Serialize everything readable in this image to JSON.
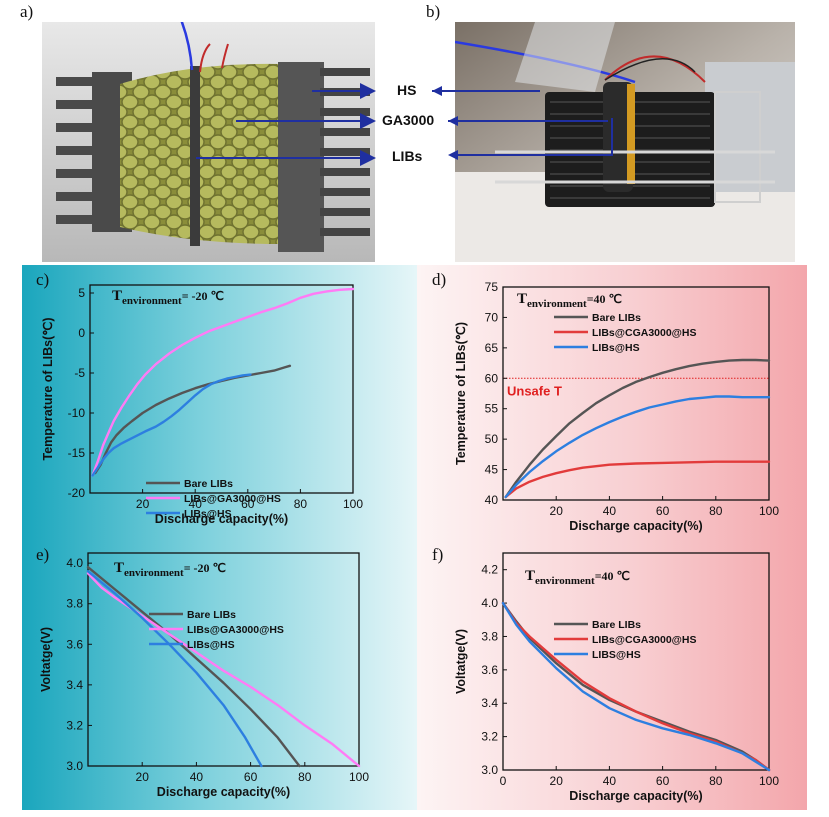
{
  "panels": {
    "a": "a)",
    "b": "b)",
    "c": "c)",
    "d": "d)",
    "e": "e)",
    "f": "f)"
  },
  "diagram": {
    "label_hs": "HS",
    "label_ga": "GA3000",
    "label_libs": "LIBs",
    "photo_description": "Photograph of battery test rig with heat sink fins, foam, clamps and wires"
  },
  "colors": {
    "bare": "#555555",
    "pink": "#ff7bf5",
    "blue": "#2d7fe0",
    "red": "#e23b3b",
    "arrow": "#1f2fa0",
    "teal": "#1aa6bd",
    "pinkbg": "#f3a6ab",
    "unsafe": "#e02020"
  },
  "chart_data": [
    {
      "id": "c",
      "type": "line",
      "title": "T",
      "title_sub": "environment",
      "title_rest": "= -20 ℃",
      "xlabel": "Discharge capacity(%)",
      "ylabel": "Temperature of LIBs(℃)",
      "xlim": [
        0,
        100
      ],
      "ylim": [
        -20,
        6
      ],
      "xticks": [
        20,
        40,
        60,
        80,
        100
      ],
      "yticks": [
        5,
        0,
        -5,
        -10,
        -15,
        -20
      ],
      "series": [
        {
          "name": "Bare LIBs",
          "color": "#555555",
          "x": [
            2,
            4,
            6,
            8,
            10,
            13,
            16,
            20,
            25,
            30,
            35,
            40,
            45,
            50,
            55,
            60,
            65,
            70,
            74,
            76
          ],
          "y": [
            -17.5,
            -16.5,
            -15.0,
            -13.7,
            -12.8,
            -11.8,
            -11.0,
            -10.0,
            -9.0,
            -8.2,
            -7.5,
            -6.9,
            -6.4,
            -6.0,
            -5.6,
            -5.3,
            -5.0,
            -4.7,
            -4.3,
            -4.1
          ]
        },
        {
          "name": "LIBs@GA3000@HS",
          "color": "#ff7bf5",
          "x": [
            1,
            3,
            5,
            7,
            9,
            12,
            15,
            18,
            21,
            25,
            30,
            35,
            40,
            45,
            50,
            55,
            60,
            65,
            70,
            75,
            80,
            85,
            90,
            95,
            100
          ],
          "y": [
            -17.8,
            -16.0,
            -14.0,
            -12.5,
            -11.0,
            -9.3,
            -7.8,
            -6.4,
            -5.2,
            -3.9,
            -2.6,
            -1.5,
            -0.6,
            0.2,
            0.8,
            1.4,
            2.0,
            2.6,
            3.1,
            3.7,
            4.4,
            4.9,
            5.2,
            5.4,
            5.5
          ]
        },
        {
          "name": "LIBs@HS",
          "color": "#2d7fe0",
          "x": [
            1,
            3,
            5,
            7,
            9,
            12,
            15,
            18,
            21,
            25,
            28,
            31,
            34,
            37,
            40,
            43,
            46,
            49,
            52,
            55,
            58,
            61
          ],
          "y": [
            -17.8,
            -16.8,
            -15.8,
            -15.0,
            -14.4,
            -13.8,
            -13.3,
            -12.8,
            -12.3,
            -11.7,
            -11.1,
            -10.4,
            -9.6,
            -8.7,
            -7.8,
            -7.0,
            -6.4,
            -6.0,
            -5.7,
            -5.5,
            -5.3,
            -5.2
          ]
        }
      ]
    },
    {
      "id": "d",
      "type": "line",
      "title": "T",
      "title_sub": "environment",
      "title_rest": "=40 ℃",
      "xlabel": "Discharge capacity(%)",
      "ylabel": "Temperature of LIBs(℃)",
      "xlim": [
        0,
        100
      ],
      "ylim": [
        40,
        75
      ],
      "xticks": [
        20,
        40,
        60,
        80,
        100
      ],
      "yticks": [
        40,
        45,
        50,
        55,
        60,
        65,
        70,
        75
      ],
      "annotation": {
        "text": "Unsafe T",
        "y": 60
      },
      "series": [
        {
          "name": "Bare LIBs",
          "color": "#555555",
          "x": [
            1,
            5,
            10,
            15,
            20,
            25,
            30,
            35,
            40,
            45,
            50,
            55,
            60,
            65,
            70,
            75,
            80,
            85,
            90,
            95,
            100
          ],
          "y": [
            40.5,
            43.0,
            45.8,
            48.3,
            50.5,
            52.6,
            54.3,
            55.9,
            57.2,
            58.4,
            59.4,
            60.2,
            60.9,
            61.5,
            62.0,
            62.4,
            62.7,
            62.9,
            63.0,
            63.0,
            62.9
          ]
        },
        {
          "name": "LIBs@CGA3000@HS",
          "color": "#e23b3b",
          "x": [
            1,
            5,
            10,
            15,
            20,
            25,
            30,
            40,
            50,
            60,
            70,
            80,
            90,
            100
          ],
          "y": [
            40.5,
            41.9,
            43.0,
            43.8,
            44.4,
            44.9,
            45.3,
            45.8,
            46.0,
            46.1,
            46.2,
            46.3,
            46.3,
            46.3
          ]
        },
        {
          "name": "LIBs@HS",
          "color": "#2d7fe0",
          "x": [
            1,
            5,
            10,
            15,
            20,
            25,
            30,
            35,
            40,
            45,
            50,
            55,
            60,
            65,
            70,
            75,
            80,
            85,
            90,
            95,
            100
          ],
          "y": [
            40.5,
            42.5,
            44.6,
            46.4,
            48.0,
            49.4,
            50.7,
            51.8,
            52.8,
            53.7,
            54.5,
            55.2,
            55.7,
            56.2,
            56.6,
            56.8,
            57.0,
            57.0,
            56.9,
            56.9,
            56.9
          ]
        }
      ]
    },
    {
      "id": "e",
      "type": "line",
      "title": "T",
      "title_sub": "environment",
      "title_rest": "= -20 ℃",
      "xlabel": "Discharge capacity(%)",
      "ylabel": "Voltatge(V)",
      "xlim": [
        0,
        100
      ],
      "ylim": [
        3.0,
        4.05
      ],
      "xticks": [
        20,
        40,
        60,
        80,
        100
      ],
      "yticks": [
        "4.0",
        "3.8",
        "3.6",
        "3.4",
        "3.2",
        "3.0"
      ],
      "series": [
        {
          "name": "Bare LIBs",
          "color": "#555555",
          "x": [
            0,
            10,
            20,
            30,
            40,
            50,
            60,
            70,
            78
          ],
          "y": [
            3.98,
            3.87,
            3.76,
            3.65,
            3.53,
            3.41,
            3.28,
            3.14,
            3.0
          ]
        },
        {
          "name": "LIBs@GA3000@HS",
          "color": "#ff7bf5",
          "x": [
            0,
            5,
            10,
            20,
            30,
            40,
            50,
            60,
            70,
            80,
            90,
            100
          ],
          "y": [
            3.95,
            3.88,
            3.83,
            3.74,
            3.65,
            3.56,
            3.47,
            3.39,
            3.3,
            3.2,
            3.11,
            3.0
          ]
        },
        {
          "name": "LIBs@HS",
          "color": "#2d7fe0",
          "x": [
            0,
            10,
            20,
            30,
            40,
            50,
            58,
            64
          ],
          "y": [
            3.96,
            3.85,
            3.73,
            3.6,
            3.46,
            3.3,
            3.14,
            3.0
          ]
        }
      ]
    },
    {
      "id": "f",
      "type": "line",
      "title": "T",
      "title_sub": "environment",
      "title_rest": "=40 ℃",
      "xlabel": "Discharge capacity(%)",
      "ylabel": "Voltatge(V)",
      "xlim": [
        0,
        100
      ],
      "ylim": [
        3.0,
        4.3
      ],
      "xticks": [
        0,
        20,
        40,
        60,
        80,
        100
      ],
      "yticks": [
        "4.2",
        "4.0",
        "3.8",
        "3.6",
        "3.4",
        "3.2",
        "3.0"
      ],
      "series": [
        {
          "name": "Bare LIBs",
          "color": "#555555",
          "x": [
            0,
            5,
            10,
            20,
            30,
            40,
            50,
            60,
            70,
            80,
            90,
            95,
            100
          ],
          "y": [
            4.0,
            3.89,
            3.79,
            3.64,
            3.51,
            3.42,
            3.35,
            3.29,
            3.23,
            3.18,
            3.11,
            3.06,
            3.0
          ]
        },
        {
          "name": "LIBs@CGA3000@HS",
          "color": "#e23b3b",
          "x": [
            0,
            5,
            10,
            20,
            30,
            40,
            50,
            60,
            70,
            80,
            90,
            95,
            100
          ],
          "y": [
            4.0,
            3.88,
            3.8,
            3.66,
            3.53,
            3.43,
            3.35,
            3.28,
            3.22,
            3.17,
            3.1,
            3.06,
            3.0
          ]
        },
        {
          "name": "LIBS@HS",
          "color": "#2d7fe0",
          "x": [
            0,
            5,
            10,
            20,
            30,
            40,
            50,
            60,
            70,
            80,
            90,
            95,
            100
          ],
          "y": [
            4.0,
            3.87,
            3.77,
            3.61,
            3.47,
            3.37,
            3.3,
            3.25,
            3.21,
            3.16,
            3.1,
            3.05,
            3.0
          ]
        }
      ]
    }
  ]
}
